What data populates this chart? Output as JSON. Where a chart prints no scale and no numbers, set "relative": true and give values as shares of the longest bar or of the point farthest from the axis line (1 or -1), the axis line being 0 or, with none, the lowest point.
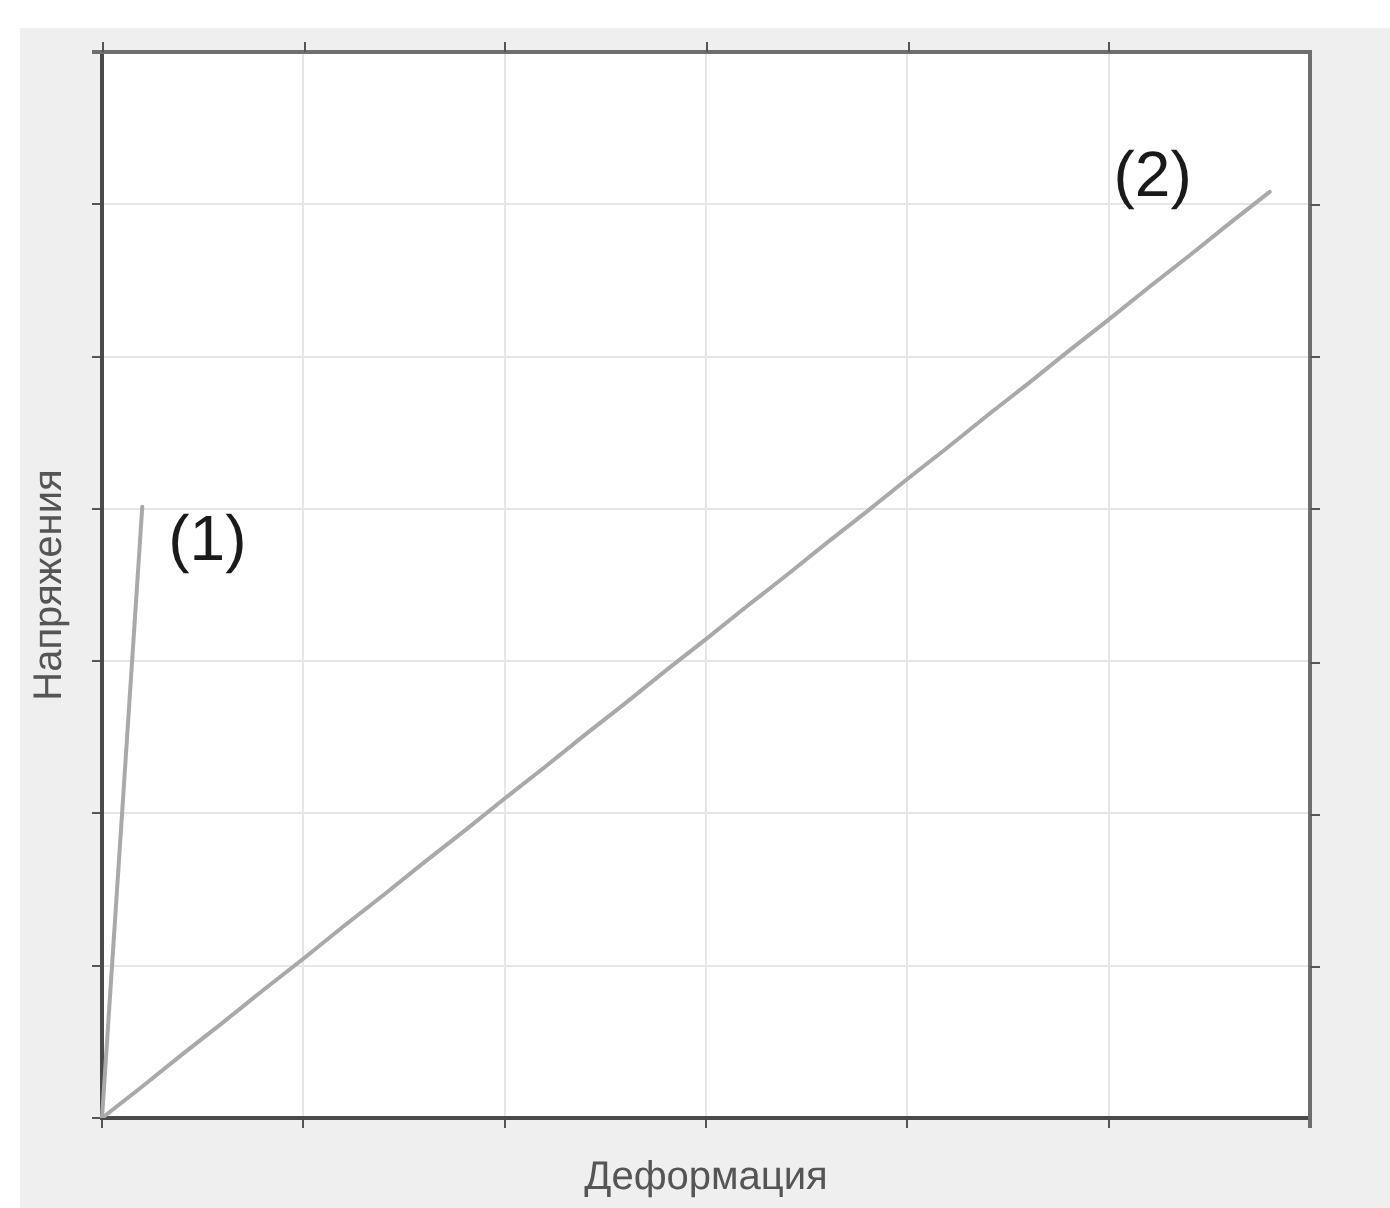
{
  "chart_data": {
    "type": "line",
    "xlabel": "Деформация",
    "ylabel": "Напряжения",
    "relative": true,
    "grid": true,
    "categories": [
      null,
      null,
      null,
      null,
      null,
      null,
      null,
      null,
      null,
      null,
      null,
      null,
      null,
      null,
      null,
      null,
      null,
      null,
      null,
      null,
      null,
      null,
      null,
      null,
      null,
      null,
      null,
      null,
      null,
      null,
      null
    ],
    "series": [
      {
        "color": "#a9a9a9",
        "values": [
          0,
          0.66,
          null,
          null,
          null,
          null,
          null,
          null,
          null,
          null,
          null,
          null,
          null,
          null,
          null,
          null,
          null,
          null,
          null,
          null,
          null,
          null,
          null,
          null,
          null,
          null,
          null,
          null,
          null,
          null,
          null
        ]
      },
      {
        "color": "#a9a9a9",
        "values": [
          0,
          0.034,
          0.069,
          0.103,
          0.138,
          0.172,
          0.207,
          0.241,
          0.276,
          0.31,
          0.345,
          0.379,
          0.414,
          0.448,
          0.483,
          0.517,
          0.552,
          0.586,
          0.621,
          0.655,
          0.69,
          0.724,
          0.759,
          0.793,
          0.828,
          0.862,
          0.897,
          0.931,
          0.966,
          1,
          null
        ]
      }
    ],
    "annotations": [
      "(1)",
      "(2)"
    ]
  }
}
